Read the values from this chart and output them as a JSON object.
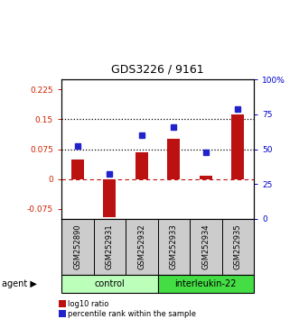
{
  "title": "GDS3226 / 9161",
  "samples": [
    "GSM252890",
    "GSM252931",
    "GSM252932",
    "GSM252933",
    "GSM252934",
    "GSM252935"
  ],
  "log10_ratio": [
    0.048,
    -0.095,
    0.068,
    0.1,
    0.008,
    0.163
  ],
  "percentile_rank": [
    52,
    32,
    60,
    66,
    48,
    79
  ],
  "ylim_left": [
    -0.1,
    0.25
  ],
  "ylim_right": [
    0,
    100
  ],
  "yticks_left": [
    -0.075,
    0,
    0.075,
    0.15,
    0.225
  ],
  "yticks_right": [
    0,
    25,
    50,
    75,
    100
  ],
  "hlines_dotted": [
    0.075,
    0.15
  ],
  "hline_dashed": 0,
  "bar_color": "#bb1111",
  "dot_color": "#2222cc",
  "left_tick_color": "#cc2200",
  "right_tick_color": "#0000cc",
  "legend_red_label": "log10 ratio",
  "legend_blue_label": "percentile rank within the sample",
  "background_plot": "#ffffff",
  "background_samples": "#cccccc",
  "background_control": "#bbffbb",
  "background_interleukin": "#44dd44",
  "control_label": "control",
  "interleukin_label": "interleukin-22",
  "agent_label": "agent"
}
